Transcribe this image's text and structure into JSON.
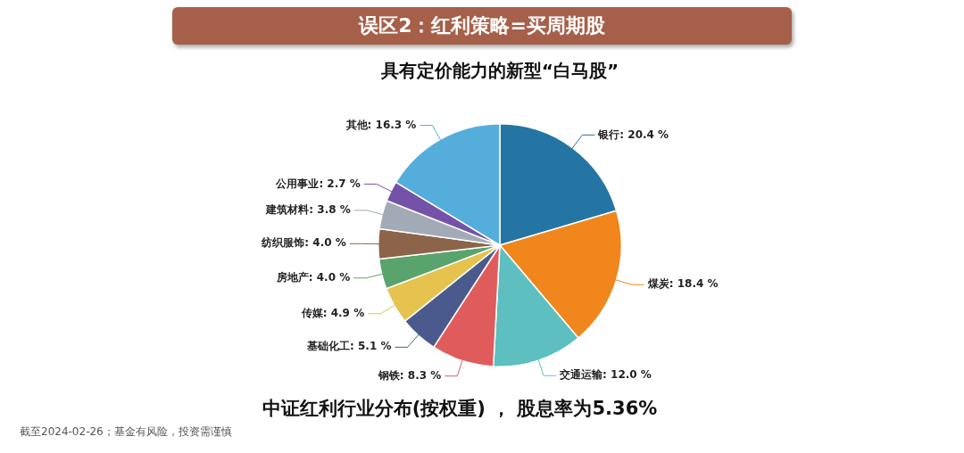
{
  "chart_data": {
    "type": "pie",
    "title": "误区2：红利策略=买周期股",
    "subtitle": "具有定价能力的新型“白马股”",
    "categories": [
      "银行",
      "煤炭",
      "交通运输",
      "钢铁",
      "基础化工",
      "传媒",
      "房地产",
      "纺织服饰",
      "建筑材料",
      "公用事业",
      "其他"
    ],
    "values": [
      20.4,
      18.4,
      12.0,
      8.3,
      5.1,
      4.9,
      4.0,
      4.0,
      3.8,
      2.7,
      16.3
    ],
    "colors": [
      "#2475a4",
      "#f0861c",
      "#5dbfbf",
      "#e05c5c",
      "#4a5a8c",
      "#e6c24e",
      "#58a46c",
      "#8c6449",
      "#a2aab6",
      "#7452a8",
      "#55addc"
    ],
    "value_labels": [
      "20.4 %",
      "18.4 %",
      "12.0 %",
      "8.3 %",
      "5.1 %",
      "4.9 %",
      "4.0 %",
      "4.0 %",
      "3.8 %",
      "2.7 %",
      "16.3 %"
    ],
    "legend": false,
    "annotations": [
      "中证红利行业分布(按权重) ， 股息率为5.36%",
      "截至2024-02-26；基金有风险，投资需谨慎"
    ]
  }
}
